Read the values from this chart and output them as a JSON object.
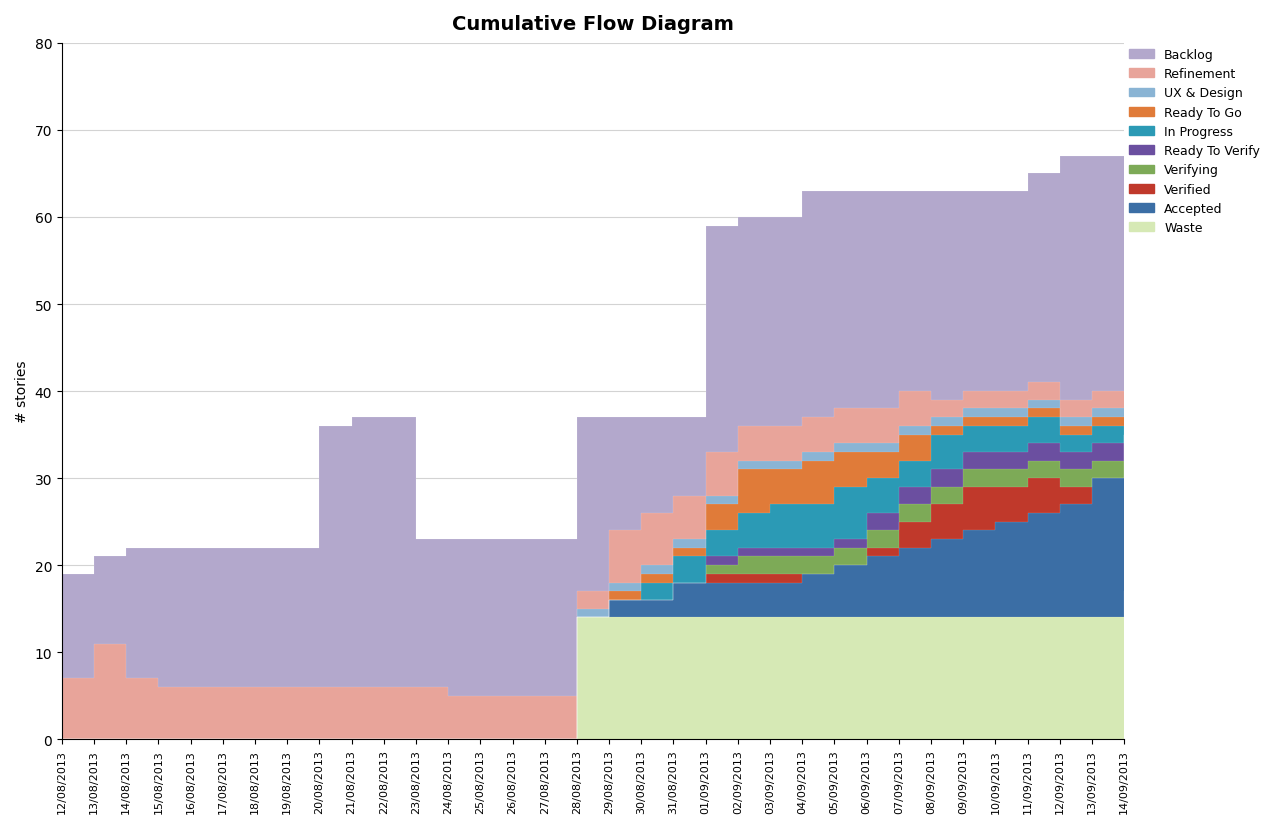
{
  "title": "Cumulative Flow Diagram",
  "ylabel": "# stories",
  "dates": [
    "12/08/2013",
    "13/08/2013",
    "14/08/2013",
    "15/08/2013",
    "16/08/2013",
    "17/08/2013",
    "18/08/2013",
    "19/08/2013",
    "20/08/2013",
    "21/08/2013",
    "22/08/2013",
    "23/08/2013",
    "24/08/2013",
    "25/08/2013",
    "26/08/2013",
    "27/08/2013",
    "28/08/2013",
    "29/08/2013",
    "30/08/2013",
    "31/08/2013",
    "01/09/2013",
    "02/09/2013",
    "03/09/2013",
    "04/09/2013",
    "05/09/2013",
    "06/09/2013",
    "07/09/2013",
    "08/09/2013",
    "09/09/2013",
    "10/09/2013",
    "11/09/2013",
    "12/09/2013",
    "13/09/2013",
    "14/09/2013"
  ],
  "series_cumulative": {
    "Waste": [
      0,
      0,
      0,
      0,
      0,
      0,
      0,
      0,
      0,
      0,
      0,
      0,
      0,
      0,
      0,
      0,
      14,
      14,
      14,
      14,
      14,
      14,
      14,
      14,
      14,
      14,
      14,
      14,
      14,
      14,
      14,
      14,
      14,
      17
    ],
    "Accepted": [
      0,
      0,
      0,
      0,
      0,
      0,
      0,
      0,
      0,
      0,
      0,
      0,
      0,
      0,
      0,
      0,
      14,
      16,
      16,
      18,
      18,
      18,
      18,
      19,
      20,
      21,
      22,
      23,
      24,
      25,
      26,
      27,
      30,
      35
    ],
    "Verified": [
      0,
      0,
      0,
      0,
      0,
      0,
      0,
      0,
      0,
      0,
      0,
      0,
      0,
      0,
      0,
      0,
      14,
      16,
      16,
      18,
      19,
      19,
      19,
      19,
      20,
      22,
      25,
      27,
      29,
      29,
      30,
      29,
      30,
      35
    ],
    "Verifying": [
      0,
      0,
      0,
      0,
      0,
      0,
      0,
      0,
      0,
      0,
      0,
      0,
      0,
      0,
      0,
      0,
      14,
      16,
      16,
      18,
      20,
      21,
      21,
      21,
      22,
      24,
      27,
      29,
      31,
      31,
      32,
      31,
      32,
      35
    ],
    "Ready To Verify": [
      0,
      0,
      0,
      0,
      0,
      0,
      0,
      0,
      0,
      0,
      0,
      0,
      0,
      0,
      0,
      0,
      14,
      16,
      16,
      18,
      21,
      22,
      22,
      22,
      23,
      26,
      29,
      31,
      33,
      33,
      34,
      33,
      34,
      35
    ],
    "In Progress": [
      0,
      0,
      0,
      0,
      0,
      0,
      0,
      0,
      0,
      0,
      0,
      0,
      0,
      0,
      0,
      0,
      14,
      16,
      18,
      21,
      24,
      26,
      27,
      27,
      29,
      30,
      32,
      35,
      36,
      36,
      37,
      35,
      36,
      35
    ],
    "Ready To Go": [
      0,
      0,
      0,
      0,
      0,
      0,
      0,
      0,
      0,
      0,
      0,
      0,
      0,
      0,
      0,
      0,
      14,
      17,
      19,
      22,
      27,
      31,
      31,
      32,
      33,
      33,
      35,
      36,
      37,
      37,
      38,
      36,
      37,
      37
    ],
    "UX & Design": [
      0,
      0,
      0,
      0,
      0,
      0,
      0,
      0,
      0,
      0,
      0,
      0,
      0,
      0,
      0,
      0,
      15,
      18,
      20,
      23,
      28,
      32,
      32,
      33,
      34,
      34,
      36,
      37,
      38,
      38,
      39,
      37,
      38,
      38
    ],
    "Refinement": [
      7,
      11,
      7,
      6,
      6,
      6,
      6,
      6,
      6,
      6,
      6,
      6,
      5,
      5,
      5,
      5,
      17,
      24,
      26,
      28,
      33,
      36,
      36,
      37,
      38,
      38,
      40,
      39,
      40,
      40,
      41,
      39,
      40,
      40
    ],
    "Backlog": [
      19,
      21,
      22,
      22,
      22,
      22,
      22,
      22,
      36,
      37,
      37,
      23,
      23,
      23,
      23,
      23,
      37,
      37,
      37,
      37,
      59,
      60,
      60,
      63,
      63,
      63,
      63,
      63,
      63,
      63,
      65,
      67,
      67,
      67
    ]
  },
  "colors": {
    "Waste": "#d6e9b5",
    "Accepted": "#3b6ea5",
    "Verified": "#c0392b",
    "Verifying": "#7daa57",
    "Ready To Verify": "#6b4fa0",
    "In Progress": "#2b9ab5",
    "Ready To Go": "#e07b39",
    "UX & Design": "#8ab4d4",
    "Refinement": "#e8a49a",
    "Backlog": "#b3a8cc"
  },
  "legend_order": [
    "Backlog",
    "Refinement",
    "UX & Design",
    "Ready To Go",
    "In Progress",
    "Ready To Verify",
    "Verifying",
    "Verified",
    "Accepted",
    "Waste"
  ],
  "stack_order": [
    "Waste",
    "Accepted",
    "Verified",
    "Verifying",
    "Ready To Verify",
    "In Progress",
    "Ready To Go",
    "UX & Design",
    "Refinement",
    "Backlog"
  ],
  "ylim": [
    0,
    80
  ],
  "yticks": [
    0,
    10,
    20,
    30,
    40,
    50,
    60,
    70,
    80
  ]
}
